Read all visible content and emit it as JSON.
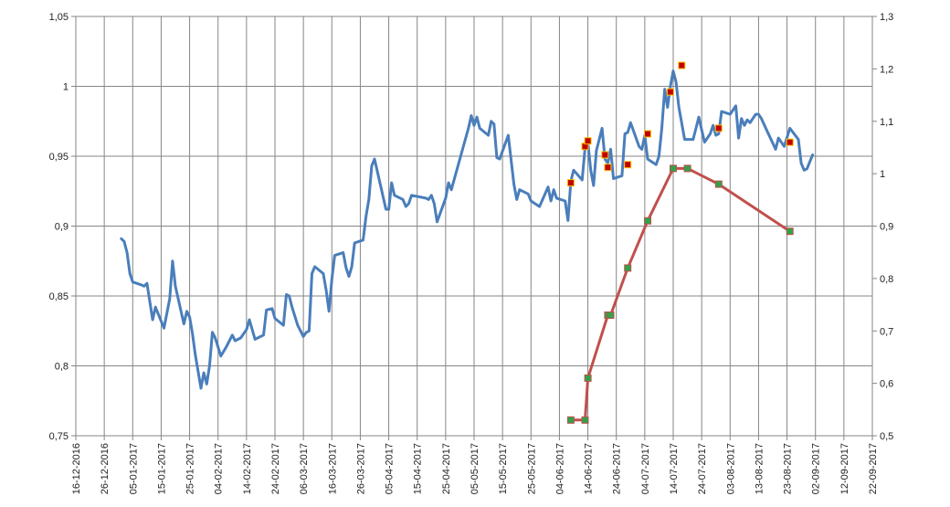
{
  "chart_data": {
    "type": "line",
    "grid": true,
    "x_range": [
      "2016-12-16",
      "2017-09-22"
    ],
    "x_ticks": [
      "16-12-2016",
      "26-12-2016",
      "05-01-2017",
      "15-01-2017",
      "25-01-2017",
      "04-02-2017",
      "14-02-2017",
      "24-02-2017",
      "06-03-2017",
      "16-03-2017",
      "26-03-2017",
      "05-04-2017",
      "15-04-2017",
      "25-04-2017",
      "05-05-2017",
      "15-05-2017",
      "25-05-2017",
      "04-06-2017",
      "14-06-2017",
      "24-06-2017",
      "04-07-2017",
      "14-07-2017",
      "24-07-2017",
      "03-08-2017",
      "13-08-2017",
      "23-08-2017",
      "02-09-2017",
      "12-09-2017",
      "22-09-2017"
    ],
    "y_left": {
      "range": [
        0.75,
        1.05
      ],
      "ticks": [
        "0,75",
        "0,8",
        "0,85",
        "0,9",
        "0,95",
        "1",
        "1,05"
      ]
    },
    "y_right": {
      "range": [
        0.5,
        1.3
      ],
      "ticks": [
        "0,5",
        "0,6",
        "0,7",
        "0,8",
        "0,9",
        "1",
        "1,1",
        "1,2",
        "1,3"
      ]
    },
    "colors": {
      "blue_line": "#4a7ebb",
      "red_line": "#c0504d",
      "red_marker": "#c00000",
      "green_marker": "#2fa24a",
      "grid": "#868686"
    },
    "series": [
      {
        "axis": "left",
        "line": true,
        "marker": false,
        "color": "#4a7ebb",
        "points": [
          [
            "2017-01-01",
            0.891
          ],
          [
            "2017-01-02",
            0.889
          ],
          [
            "2017-01-03",
            0.881
          ],
          [
            "2017-01-04",
            0.866
          ],
          [
            "2017-01-05",
            0.86
          ],
          [
            "2017-01-08",
            0.858
          ],
          [
            "2017-01-09",
            0.857
          ],
          [
            "2017-01-10",
            0.859
          ],
          [
            "2017-01-12",
            0.833
          ],
          [
            "2017-01-13",
            0.842
          ],
          [
            "2017-01-16",
            0.827
          ],
          [
            "2017-01-18",
            0.848
          ],
          [
            "2017-01-19",
            0.875
          ],
          [
            "2017-01-20",
            0.857
          ],
          [
            "2017-01-23",
            0.83
          ],
          [
            "2017-01-24",
            0.839
          ],
          [
            "2017-01-25",
            0.835
          ],
          [
            "2017-01-26",
            0.823
          ],
          [
            "2017-01-27",
            0.808
          ],
          [
            "2017-01-29",
            0.784
          ],
          [
            "2017-01-30",
            0.795
          ],
          [
            "2017-01-31",
            0.787
          ],
          [
            "2017-02-01",
            0.8
          ],
          [
            "2017-02-02",
            0.824
          ],
          [
            "2017-02-03",
            0.82
          ],
          [
            "2017-02-05",
            0.807
          ],
          [
            "2017-02-07",
            0.814
          ],
          [
            "2017-02-09",
            0.822
          ],
          [
            "2017-02-10",
            0.818
          ],
          [
            "2017-02-12",
            0.82
          ],
          [
            "2017-02-13",
            0.823
          ],
          [
            "2017-02-14",
            0.826
          ],
          [
            "2017-02-15",
            0.833
          ],
          [
            "2017-02-17",
            0.819
          ],
          [
            "2017-02-20",
            0.822
          ],
          [
            "2017-02-21",
            0.84
          ],
          [
            "2017-02-23",
            0.841
          ],
          [
            "2017-02-24",
            0.834
          ],
          [
            "2017-02-27",
            0.829
          ],
          [
            "2017-02-28",
            0.851
          ],
          [
            "2017-03-01",
            0.85
          ],
          [
            "2017-03-02",
            0.842
          ],
          [
            "2017-03-04",
            0.829
          ],
          [
            "2017-03-06",
            0.821
          ],
          [
            "2017-03-07",
            0.824
          ],
          [
            "2017-03-08",
            0.825
          ],
          [
            "2017-03-09",
            0.866
          ],
          [
            "2017-03-10",
            0.871
          ],
          [
            "2017-03-13",
            0.866
          ],
          [
            "2017-03-14",
            0.854
          ],
          [
            "2017-03-15",
            0.839
          ],
          [
            "2017-03-16",
            0.862
          ],
          [
            "2017-03-17",
            0.879
          ],
          [
            "2017-03-20",
            0.881
          ],
          [
            "2017-03-21",
            0.87
          ],
          [
            "2017-03-22",
            0.864
          ],
          [
            "2017-03-23",
            0.871
          ],
          [
            "2017-03-24",
            0.888
          ],
          [
            "2017-03-27",
            0.89
          ],
          [
            "2017-03-28",
            0.907
          ],
          [
            "2017-03-29",
            0.919
          ],
          [
            "2017-03-30",
            0.943
          ],
          [
            "2017-03-31",
            0.948
          ],
          [
            "2017-04-04",
            0.912
          ],
          [
            "2017-04-05",
            0.912
          ],
          [
            "2017-04-06",
            0.931
          ],
          [
            "2017-04-07",
            0.922
          ],
          [
            "2017-04-10",
            0.919
          ],
          [
            "2017-04-11",
            0.914
          ],
          [
            "2017-04-12",
            0.916
          ],
          [
            "2017-04-13",
            0.922
          ],
          [
            "2017-04-18",
            0.92
          ],
          [
            "2017-04-19",
            0.919
          ],
          [
            "2017-04-20",
            0.922
          ],
          [
            "2017-04-21",
            0.916
          ],
          [
            "2017-04-22",
            0.903
          ],
          [
            "2017-04-25",
            0.92
          ],
          [
            "2017-04-26",
            0.931
          ],
          [
            "2017-04-27",
            0.926
          ],
          [
            "2017-05-03",
            0.97
          ],
          [
            "2017-05-04",
            0.979
          ],
          [
            "2017-05-05",
            0.972
          ],
          [
            "2017-05-06",
            0.978
          ],
          [
            "2017-05-07",
            0.97
          ],
          [
            "2017-05-10",
            0.965
          ],
          [
            "2017-05-11",
            0.975
          ],
          [
            "2017-05-12",
            0.973
          ],
          [
            "2017-05-13",
            0.949
          ],
          [
            "2017-05-14",
            0.948
          ],
          [
            "2017-05-17",
            0.965
          ],
          [
            "2017-05-19",
            0.93
          ],
          [
            "2017-05-20",
            0.919
          ],
          [
            "2017-05-21",
            0.926
          ],
          [
            "2017-05-24",
            0.923
          ],
          [
            "2017-05-25",
            0.918
          ],
          [
            "2017-05-28",
            0.914
          ],
          [
            "2017-05-31",
            0.928
          ],
          [
            "2017-06-01",
            0.918
          ],
          [
            "2017-06-02",
            0.926
          ],
          [
            "2017-06-03",
            0.92
          ],
          [
            "2017-06-06",
            0.918
          ],
          [
            "2017-06-07",
            0.904
          ],
          [
            "2017-06-08",
            0.932
          ],
          [
            "2017-06-09",
            0.94
          ],
          [
            "2017-06-12",
            0.933
          ],
          [
            "2017-06-13",
            0.956
          ],
          [
            "2017-06-14",
            0.96
          ],
          [
            "2017-06-15",
            0.94
          ],
          [
            "2017-06-16",
            0.929
          ],
          [
            "2017-06-17",
            0.954
          ],
          [
            "2017-06-19",
            0.97
          ],
          [
            "2017-06-20",
            0.948
          ],
          [
            "2017-06-21",
            0.945
          ],
          [
            "2017-06-22",
            0.955
          ],
          [
            "2017-06-23",
            0.934
          ],
          [
            "2017-06-26",
            0.936
          ],
          [
            "2017-06-27",
            0.966
          ],
          [
            "2017-06-28",
            0.967
          ],
          [
            "2017-06-29",
            0.974
          ],
          [
            "2017-07-02",
            0.957
          ],
          [
            "2017-07-03",
            0.955
          ],
          [
            "2017-07-04",
            0.965
          ],
          [
            "2017-07-05",
            0.948
          ],
          [
            "2017-07-08",
            0.944
          ],
          [
            "2017-07-09",
            0.95
          ],
          [
            "2017-07-10",
            0.97
          ],
          [
            "2017-07-11",
            0.998
          ],
          [
            "2017-07-12",
            0.985
          ],
          [
            "2017-07-13",
            1.0
          ],
          [
            "2017-07-14",
            1.011
          ],
          [
            "2017-07-15",
            1.003
          ],
          [
            "2017-07-16",
            0.985
          ],
          [
            "2017-07-18",
            0.962
          ],
          [
            "2017-07-21",
            0.962
          ],
          [
            "2017-07-23",
            0.978
          ],
          [
            "2017-07-24",
            0.969
          ],
          [
            "2017-07-25",
            0.96
          ],
          [
            "2017-07-27",
            0.966
          ],
          [
            "2017-07-28",
            0.972
          ],
          [
            "2017-07-29",
            0.965
          ],
          [
            "2017-07-30",
            0.966
          ],
          [
            "2017-07-31",
            0.982
          ],
          [
            "2017-08-03",
            0.98
          ],
          [
            "2017-08-05",
            0.986
          ],
          [
            "2017-08-06",
            0.963
          ],
          [
            "2017-08-07",
            0.977
          ],
          [
            "2017-08-08",
            0.972
          ],
          [
            "2017-08-09",
            0.976
          ],
          [
            "2017-08-10",
            0.974
          ],
          [
            "2017-08-12",
            0.98
          ],
          [
            "2017-08-13",
            0.98
          ],
          [
            "2017-08-14",
            0.977
          ],
          [
            "2017-08-16",
            0.968
          ],
          [
            "2017-08-19",
            0.955
          ],
          [
            "2017-08-20",
            0.963
          ],
          [
            "2017-08-22",
            0.957
          ],
          [
            "2017-08-24",
            0.97
          ],
          [
            "2017-08-27",
            0.962
          ],
          [
            "2017-08-28",
            0.945
          ],
          [
            "2017-08-29",
            0.94
          ],
          [
            "2017-08-30",
            0.941
          ],
          [
            "2017-09-01",
            0.951
          ]
        ]
      },
      {
        "axis": "right",
        "line": true,
        "marker": true,
        "color": "#c0504d",
        "marker_fill": "#2fa24a",
        "points": [
          [
            "2017-06-08",
            0.53
          ],
          [
            "2017-06-13",
            0.53
          ],
          [
            "2017-06-14",
            0.61
          ],
          [
            "2017-06-21",
            0.73
          ],
          [
            "2017-06-22",
            0.73
          ],
          [
            "2017-06-28",
            0.82
          ],
          [
            "2017-07-05",
            0.91
          ],
          [
            "2017-07-14",
            1.01
          ],
          [
            "2017-07-19",
            1.01
          ],
          [
            "2017-07-30",
            0.98
          ],
          [
            "2017-08-24",
            0.89
          ]
        ]
      },
      {
        "axis": "left",
        "line": false,
        "marker": true,
        "color": "#c00000",
        "points": [
          [
            "2017-06-08",
            0.931
          ],
          [
            "2017-06-13",
            0.957
          ],
          [
            "2017-06-14",
            0.961
          ],
          [
            "2017-06-20",
            0.951
          ],
          [
            "2017-06-21",
            0.942
          ],
          [
            "2017-06-28",
            0.944
          ],
          [
            "2017-07-05",
            0.966
          ],
          [
            "2017-07-13",
            0.996
          ],
          [
            "2017-07-17",
            1.015
          ],
          [
            "2017-07-30",
            0.97
          ],
          [
            "2017-08-24",
            0.96
          ]
        ]
      }
    ]
  }
}
